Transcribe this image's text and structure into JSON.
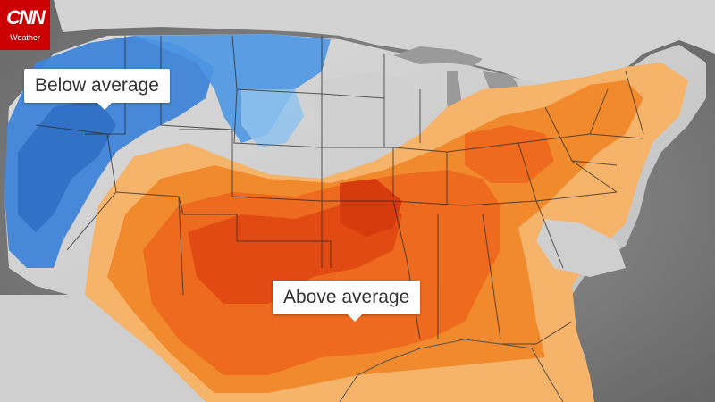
{
  "logo": {
    "mark": "CNN",
    "sub": "Weather"
  },
  "labels": {
    "below": "Below average",
    "above": "Above average"
  },
  "legend_colors": {
    "much_below": "#2f6fc4",
    "below": "#4e97e3",
    "slightly_below": "#8fc3ef",
    "near": "#cfcfcf",
    "slightly_above": "#f6b36a",
    "above": "#f08a2c",
    "well_above": "#ee6a1e",
    "much_above": "#e24a14"
  }
}
